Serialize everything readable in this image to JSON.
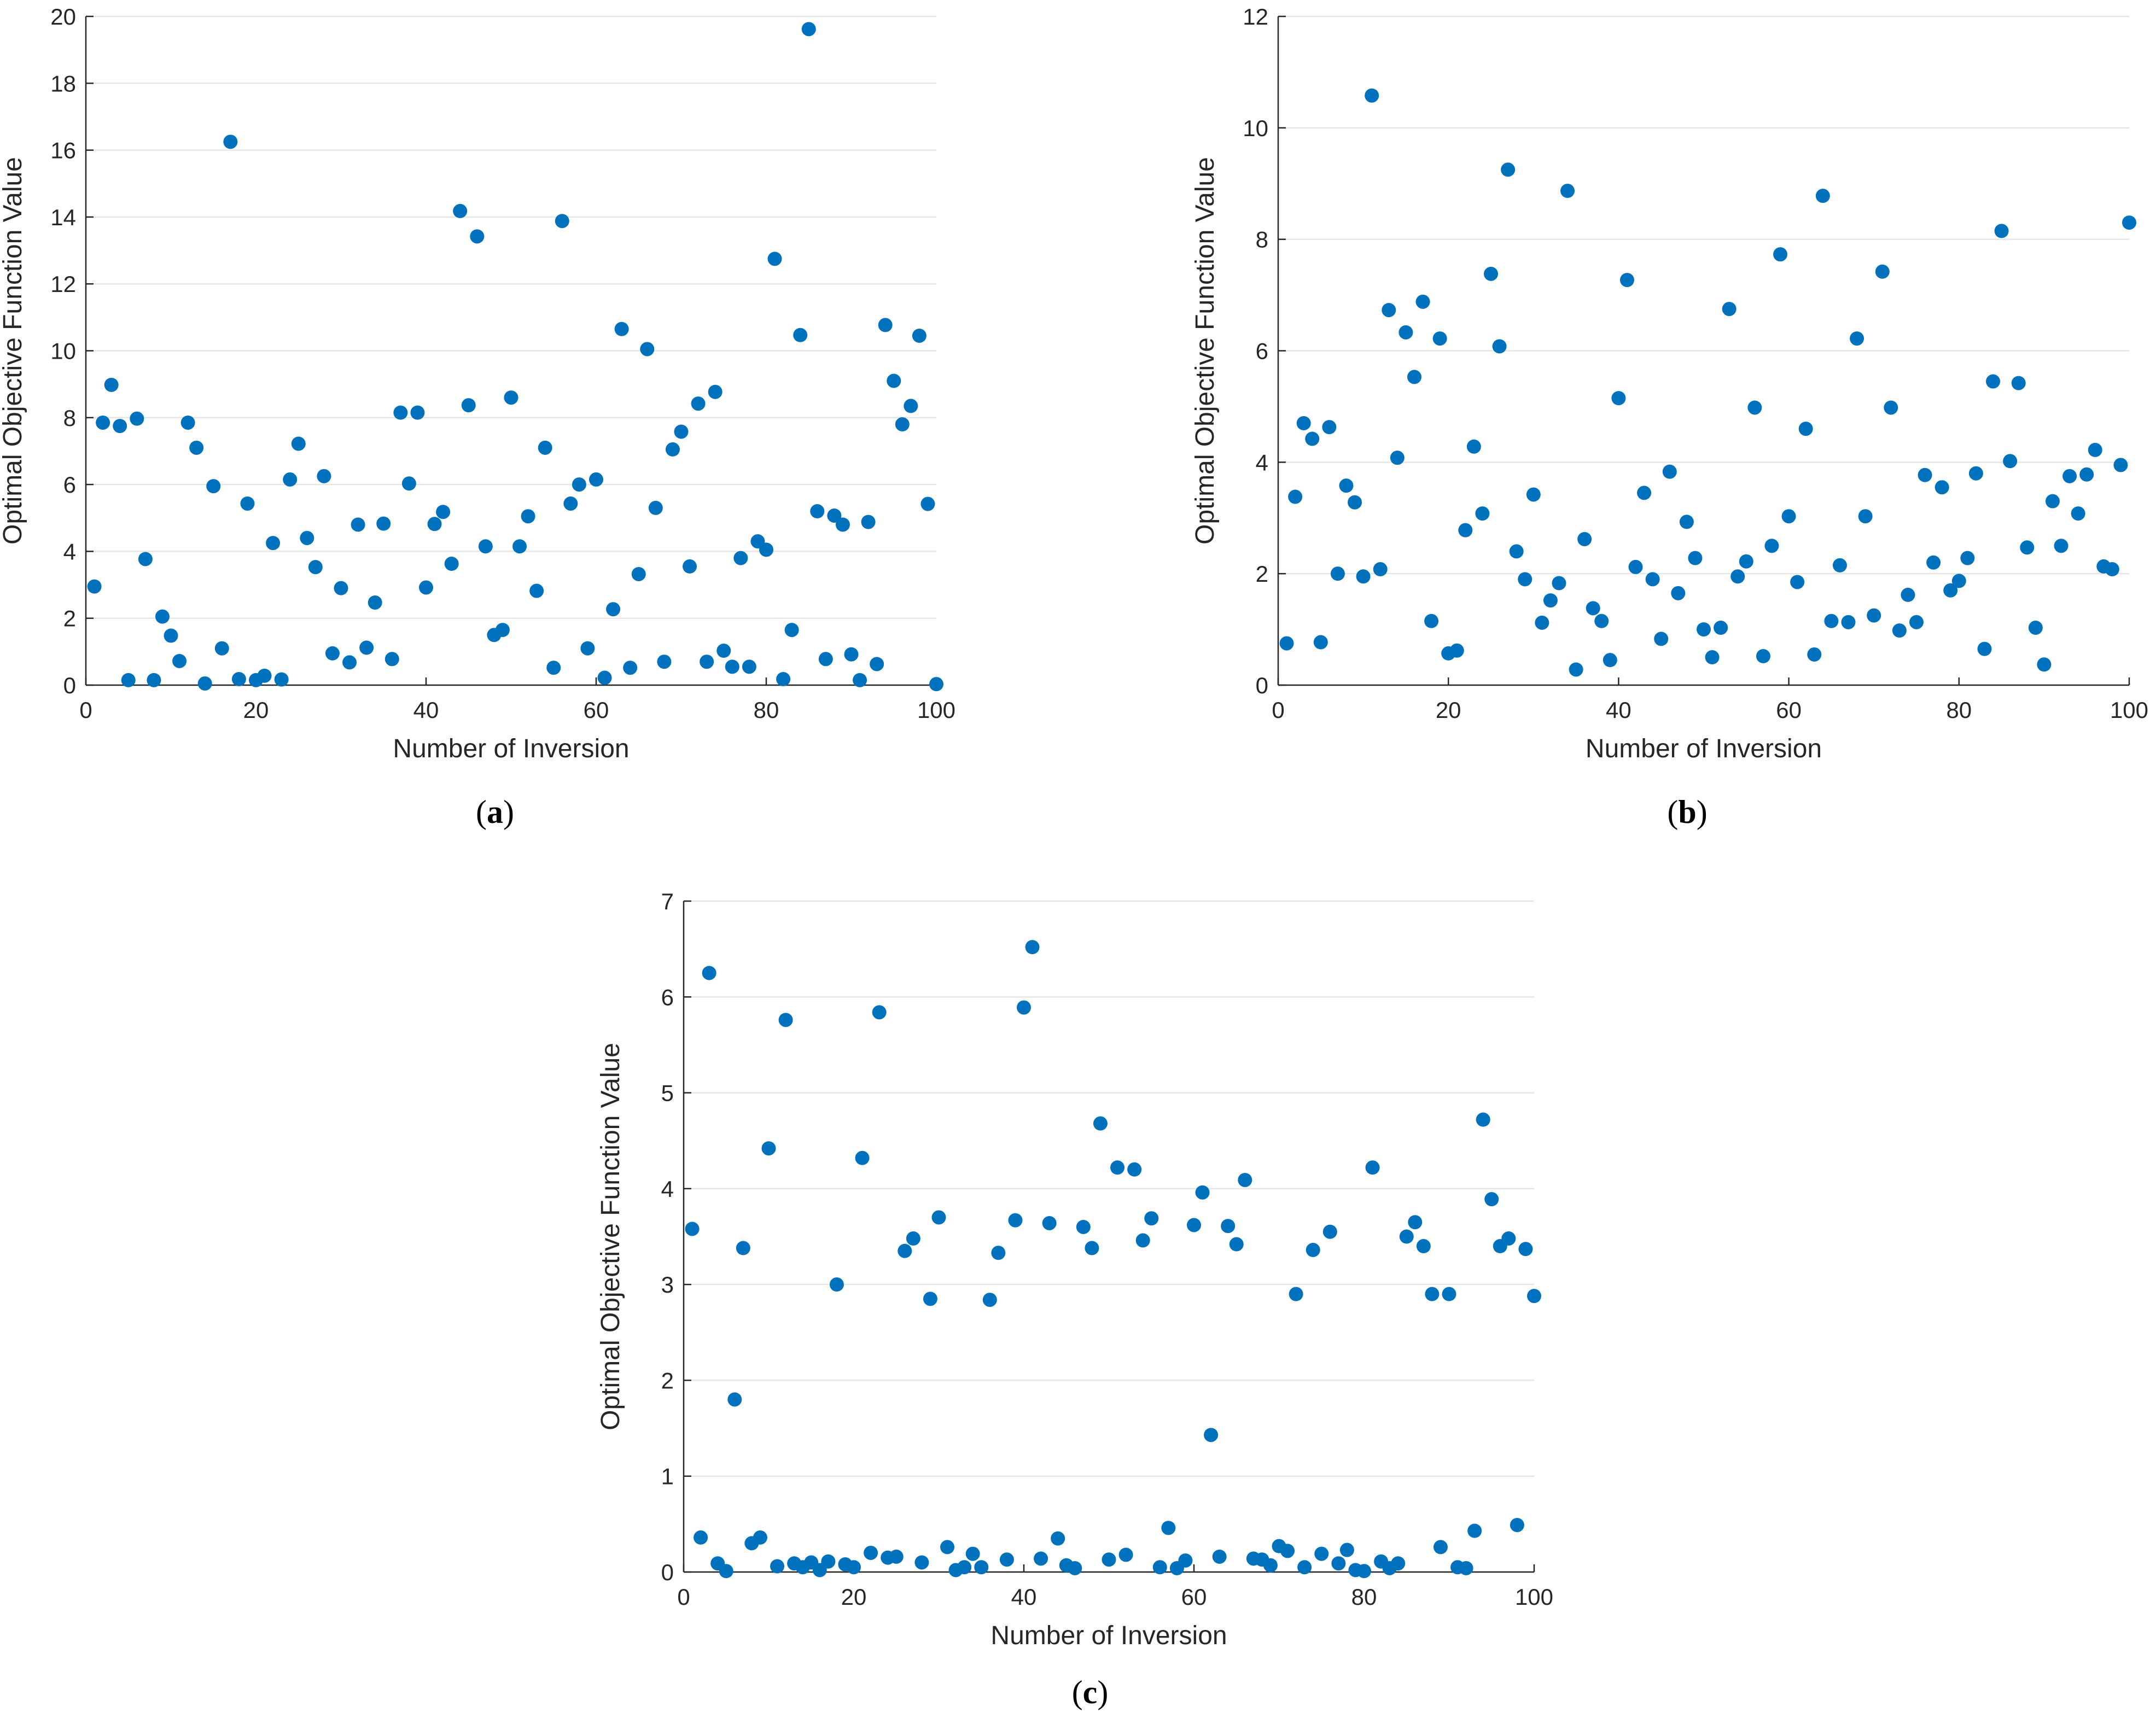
{
  "chart_data": [
    {
      "type": "scatter",
      "panel": "a",
      "xlabel": "Number of Inversion",
      "ylabel": "Optimal Objective Function Value",
      "xlim": [
        0,
        100
      ],
      "ylim": [
        0,
        20
      ],
      "xticks": [
        0,
        20,
        40,
        60,
        80,
        100
      ],
      "yticks": [
        0,
        2,
        4,
        6,
        8,
        10,
        12,
        14,
        16,
        18,
        20
      ],
      "grid": "horizontal",
      "marker_color": "#0072BD",
      "x": [
        1,
        2,
        3,
        4,
        5,
        6,
        7,
        8,
        9,
        10,
        11,
        12,
        13,
        14,
        15,
        16,
        17,
        18,
        19,
        20,
        21,
        22,
        23,
        24,
        25,
        26,
        27,
        28,
        29,
        30,
        31,
        32,
        33,
        34,
        35,
        36,
        37,
        38,
        39,
        40,
        41,
        42,
        43,
        44,
        45,
        46,
        47,
        48,
        49,
        50,
        51,
        52,
        53,
        54,
        55,
        56,
        57,
        58,
        59,
        60,
        61,
        62,
        63,
        64,
        65,
        66,
        67,
        68,
        69,
        70,
        71,
        72,
        73,
        74,
        75,
        76,
        77,
        78,
        79,
        80,
        81,
        82,
        83,
        84,
        85,
        86,
        87,
        88,
        89,
        90,
        91,
        92,
        93,
        94,
        95,
        96,
        97,
        98,
        99,
        100
      ],
      "y": [
        2.95,
        7.85,
        8.98,
        7.75,
        0.15,
        7.97,
        3.77,
        0.15,
        2.05,
        1.48,
        0.72,
        7.85,
        7.1,
        0.05,
        5.95,
        1.1,
        16.25,
        0.18,
        5.43,
        0.15,
        0.28,
        4.25,
        0.17,
        6.15,
        7.22,
        4.4,
        3.53,
        6.25,
        0.95,
        2.9,
        0.68,
        4.8,
        1.12,
        2.47,
        4.83,
        0.78,
        8.15,
        6.03,
        8.15,
        2.92,
        4.82,
        5.18,
        3.63,
        14.18,
        8.37,
        13.42,
        4.15,
        1.5,
        1.65,
        8.6,
        4.15,
        5.05,
        2.82,
        7.1,
        0.52,
        13.88,
        5.43,
        6.0,
        1.1,
        6.15,
        0.22,
        2.27,
        10.65,
        0.52,
        3.32,
        10.05,
        5.3,
        0.7,
        7.05,
        7.58,
        3.55,
        8.42,
        0.7,
        8.77,
        1.03,
        0.55,
        3.8,
        0.55,
        4.3,
        4.05,
        12.75,
        0.18,
        1.65,
        10.47,
        19.62,
        5.2,
        0.78,
        5.07,
        4.8,
        0.92,
        0.15,
        4.88,
        0.63,
        10.77,
        9.1,
        7.8,
        8.35,
        10.45,
        5.42,
        0.03
      ]
    },
    {
      "type": "scatter",
      "panel": "b",
      "xlabel": "Number of Inversion",
      "ylabel": "Optimal Objective Function Value",
      "xlim": [
        0,
        100
      ],
      "ylim": [
        0,
        12
      ],
      "xticks": [
        0,
        20,
        40,
        60,
        80,
        100
      ],
      "yticks": [
        0,
        2,
        4,
        6,
        8,
        10,
        12
      ],
      "grid": "horizontal",
      "marker_color": "#0072BD",
      "x": [
        1,
        2,
        3,
        4,
        5,
        6,
        7,
        8,
        9,
        10,
        11,
        12,
        13,
        14,
        15,
        16,
        17,
        18,
        19,
        20,
        21,
        22,
        23,
        24,
        25,
        26,
        27,
        28,
        29,
        30,
        31,
        32,
        33,
        34,
        35,
        36,
        37,
        38,
        39,
        40,
        41,
        42,
        43,
        44,
        45,
        46,
        47,
        48,
        49,
        50,
        51,
        52,
        53,
        54,
        55,
        56,
        57,
        58,
        59,
        60,
        61,
        62,
        63,
        64,
        65,
        66,
        67,
        68,
        69,
        70,
        71,
        72,
        73,
        74,
        75,
        76,
        77,
        78,
        79,
        80,
        81,
        82,
        83,
        84,
        85,
        86,
        87,
        88,
        89,
        90,
        91,
        92,
        93,
        94,
        95,
        96,
        97,
        98,
        99,
        100
      ],
      "y": [
        0.75,
        3.38,
        4.7,
        4.42,
        0.77,
        4.63,
        2.0,
        3.58,
        3.28,
        1.95,
        10.58,
        2.08,
        6.73,
        4.08,
        6.33,
        5.53,
        6.88,
        1.15,
        6.22,
        0.57,
        0.62,
        2.78,
        4.28,
        3.08,
        7.38,
        6.08,
        9.25,
        2.4,
        1.9,
        3.42,
        1.12,
        1.52,
        1.83,
        8.87,
        0.28,
        2.62,
        1.38,
        1.15,
        0.45,
        5.15,
        7.27,
        2.12,
        3.45,
        1.9,
        0.83,
        3.83,
        1.65,
        2.93,
        2.28,
        1.0,
        0.5,
        1.03,
        6.75,
        1.95,
        2.22,
        4.98,
        0.52,
        2.5,
        7.73,
        3.03,
        1.85,
        4.6,
        0.55,
        8.78,
        1.15,
        2.15,
        1.13,
        6.22,
        3.03,
        1.25,
        7.42,
        4.98,
        0.98,
        1.62,
        1.13,
        3.77,
        2.2,
        3.55,
        1.7,
        1.87,
        2.28,
        3.8,
        0.65,
        5.45,
        8.15,
        4.02,
        5.42,
        2.47,
        1.03,
        0.37,
        3.3,
        2.5,
        3.75,
        3.08,
        3.78,
        4.22,
        2.13,
        2.08,
        3.95,
        8.3
      ]
    },
    {
      "type": "scatter",
      "panel": "c",
      "xlabel": "Number of Inversion",
      "ylabel": "Optimal Objective Function Value",
      "xlim": [
        0,
        100
      ],
      "ylim": [
        0,
        7
      ],
      "xticks": [
        0,
        20,
        40,
        60,
        80,
        100
      ],
      "yticks": [
        0,
        1,
        2,
        3,
        4,
        5,
        6,
        7
      ],
      "grid": "horizontal",
      "marker_color": "#0072BD",
      "x": [
        1,
        2,
        3,
        4,
        5,
        6,
        7,
        8,
        9,
        10,
        11,
        12,
        13,
        14,
        15,
        16,
        17,
        18,
        19,
        20,
        21,
        22,
        23,
        24,
        25,
        26,
        27,
        28,
        29,
        30,
        31,
        32,
        33,
        34,
        35,
        36,
        37,
        38,
        39,
        40,
        41,
        42,
        43,
        44,
        45,
        46,
        47,
        48,
        49,
        50,
        51,
        52,
        53,
        54,
        55,
        56,
        57,
        58,
        59,
        60,
        61,
        62,
        63,
        64,
        65,
        66,
        67,
        68,
        69,
        70,
        71,
        72,
        73,
        74,
        75,
        76,
        77,
        78,
        79,
        80,
        81,
        82,
        83,
        84,
        85,
        86,
        87,
        88,
        89,
        90,
        91,
        92,
        93,
        94,
        95,
        96,
        97,
        98,
        99,
        100
      ],
      "y": [
        3.58,
        0.36,
        6.25,
        0.09,
        0.01,
        1.8,
        3.38,
        0.3,
        0.36,
        4.42,
        0.06,
        5.76,
        0.09,
        0.05,
        0.1,
        0.02,
        0.11,
        3.0,
        0.08,
        0.05,
        4.32,
        0.2,
        5.84,
        0.15,
        0.16,
        3.35,
        3.48,
        0.1,
        2.85,
        3.7,
        0.26,
        0.02,
        0.05,
        0.19,
        0.05,
        2.84,
        3.33,
        0.13,
        3.67,
        5.89,
        6.52,
        0.14,
        3.64,
        0.35,
        0.07,
        0.04,
        3.6,
        3.38,
        4.68,
        0.13,
        4.22,
        0.18,
        4.2,
        3.46,
        3.69,
        0.05,
        0.46,
        0.04,
        0.12,
        3.62,
        3.96,
        1.43,
        0.16,
        3.61,
        3.42,
        4.09,
        0.14,
        0.13,
        0.07,
        0.27,
        0.22,
        2.9,
        0.05,
        3.36,
        0.19,
        3.55,
        0.09,
        0.23,
        0.02,
        0.01,
        4.22,
        0.11,
        0.04,
        0.09,
        3.5,
        3.65,
        3.4,
        2.9,
        0.26,
        2.9,
        0.05,
        0.04,
        0.43,
        4.72,
        3.89,
        3.4,
        3.48,
        0.49,
        3.37,
        2.88
      ]
    }
  ],
  "panel_labels": {
    "a": {
      "open": "(",
      "letter": "a",
      "close": ")"
    },
    "b": {
      "open": "(",
      "letter": "b",
      "close": ")"
    },
    "c": {
      "open": "(",
      "letter": "c",
      "close": ")"
    }
  }
}
